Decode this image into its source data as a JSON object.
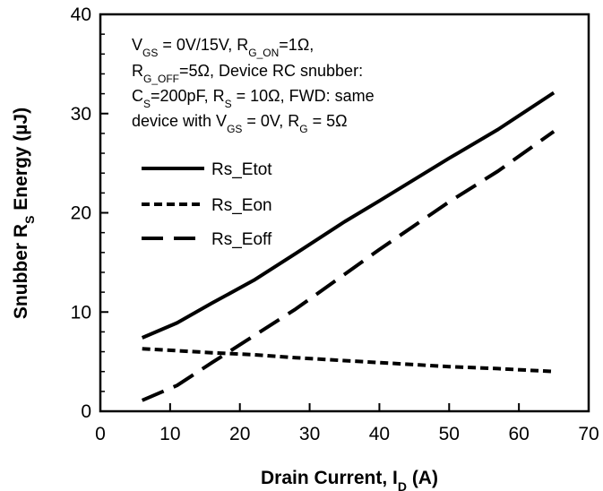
{
  "chart_data": {
    "type": "line",
    "xlabel": "Drain Current, I",
    "xlabel_sub": "D",
    "xlabel_unit": " (A)",
    "ylabel": "Snubber R",
    "ylabel_sub": "S",
    "ylabel_unit": " Energy (µJ)",
    "xlim": [
      0,
      70
    ],
    "ylim": [
      0,
      40
    ],
    "xticks": [
      "0",
      "10",
      "20",
      "30",
      "40",
      "50",
      "60",
      "70"
    ],
    "yticks": [
      "0",
      "10",
      "20",
      "30",
      "40"
    ],
    "grid": false,
    "legend_position": "left",
    "annotation": {
      "line1": {
        "a": "V",
        "a_sub": "GS",
        "b": " = 0V/15V, R",
        "b_sub": "G_ON",
        "c": "=1Ω,"
      },
      "line2": {
        "a": "R",
        "a_sub": "G_OFF",
        "b": "=5Ω, Device RC snubber:"
      },
      "line3": {
        "a": "C",
        "a_sub": "S",
        "b": "=200pF,  R",
        "b_sub": "S",
        "c": " = 10Ω, FWD: same"
      },
      "line4": {
        "a": "device with V",
        "a_sub": "GS",
        "b": " = 0V, R",
        "b_sub": "G",
        "c": " = 5Ω"
      }
    },
    "series": [
      {
        "name": "Rs_Etot",
        "style": "solid",
        "x": [
          6,
          11,
          16,
          22,
          28,
          35,
          40,
          50,
          57,
          65
        ],
        "y": [
          7.4,
          8.9,
          10.9,
          13.2,
          15.9,
          19.1,
          21.2,
          25.5,
          28.4,
          32.1
        ]
      },
      {
        "name": "Rs_Eon",
        "style": "short-dash",
        "x": [
          6,
          11,
          16,
          22,
          28,
          35,
          40,
          50,
          57,
          65
        ],
        "y": [
          6.3,
          6.1,
          5.9,
          5.7,
          5.4,
          5.1,
          4.9,
          4.5,
          4.3,
          4.0
        ]
      },
      {
        "name": "Rs_Eoff",
        "style": "long-dash",
        "x": [
          6,
          11,
          16,
          22,
          28,
          35,
          40,
          50,
          57,
          65
        ],
        "y": [
          1.1,
          2.6,
          4.9,
          7.6,
          10.3,
          13.8,
          16.3,
          21.1,
          24.2,
          28.2
        ]
      }
    ]
  }
}
